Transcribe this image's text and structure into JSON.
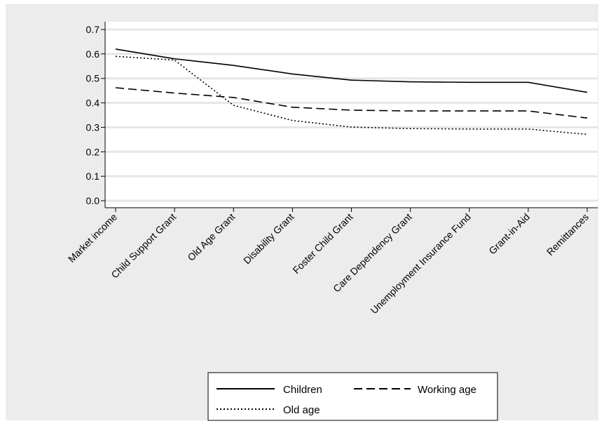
{
  "chart_data": {
    "type": "line",
    "title": "",
    "xlabel": "",
    "ylabel": "",
    "ylim": [
      0,
      0.7
    ],
    "yticks": [
      "0.0",
      "0.1",
      "0.2",
      "0.3",
      "0.4",
      "0.5",
      "0.6",
      "0.7"
    ],
    "grid": true,
    "legend_position": "bottom",
    "categories": [
      "Market income",
      "Child Support Grant",
      "Old Age Grant",
      "Disability Grant",
      "Foster Child Grant",
      "Care Dependency Grant",
      "Unemployment Insurance Fund",
      "Grant-in-Aid",
      "Remittances"
    ],
    "series": [
      {
        "name": "Children",
        "style": "solid",
        "values": [
          0.62,
          0.58,
          0.553,
          0.518,
          0.493,
          0.486,
          0.484,
          0.484,
          0.443
        ]
      },
      {
        "name": "Working age",
        "style": "dashed",
        "values": [
          0.462,
          0.44,
          0.422,
          0.382,
          0.37,
          0.367,
          0.367,
          0.367,
          0.338
        ]
      },
      {
        "name": "Old age",
        "style": "dotted",
        "values": [
          0.59,
          0.575,
          0.39,
          0.328,
          0.301,
          0.295,
          0.293,
          0.293,
          0.271
        ]
      }
    ],
    "colors": {
      "background": "#ececec",
      "plot": "#ffffff",
      "grid": "#e8e8e8",
      "line": "#000000"
    }
  }
}
